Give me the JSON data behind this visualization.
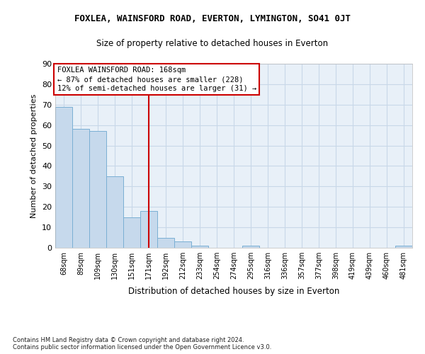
{
  "title": "FOXLEA, WAINSFORD ROAD, EVERTON, LYMINGTON, SO41 0JT",
  "subtitle": "Size of property relative to detached houses in Everton",
  "xlabel": "Distribution of detached houses by size in Everton",
  "ylabel": "Number of detached properties",
  "categories": [
    "68sqm",
    "89sqm",
    "109sqm",
    "130sqm",
    "151sqm",
    "171sqm",
    "192sqm",
    "212sqm",
    "233sqm",
    "254sqm",
    "274sqm",
    "295sqm",
    "316sqm",
    "336sqm",
    "357sqm",
    "377sqm",
    "398sqm",
    "419sqm",
    "439sqm",
    "460sqm",
    "481sqm"
  ],
  "values": [
    69,
    58,
    57,
    35,
    15,
    18,
    5,
    3,
    1,
    0,
    0,
    1,
    0,
    0,
    0,
    0,
    0,
    0,
    0,
    0,
    1
  ],
  "bar_color": "#c6d9ec",
  "bar_edge_color": "#7aafd4",
  "grid_color": "#c8d8e8",
  "bg_color": "#e8f0f8",
  "vline_x_index": 5,
  "vline_color": "#cc0000",
  "annotation_text": "FOXLEA WAINSFORD ROAD: 168sqm\n← 87% of detached houses are smaller (228)\n12% of semi-detached houses are larger (31) →",
  "annotation_box_color": "#cc0000",
  "footer_text": "Contains HM Land Registry data © Crown copyright and database right 2024.\nContains public sector information licensed under the Open Government Licence v3.0.",
  "ylim": [
    0,
    90
  ],
  "yticks": [
    0,
    10,
    20,
    30,
    40,
    50,
    60,
    70,
    80,
    90
  ]
}
